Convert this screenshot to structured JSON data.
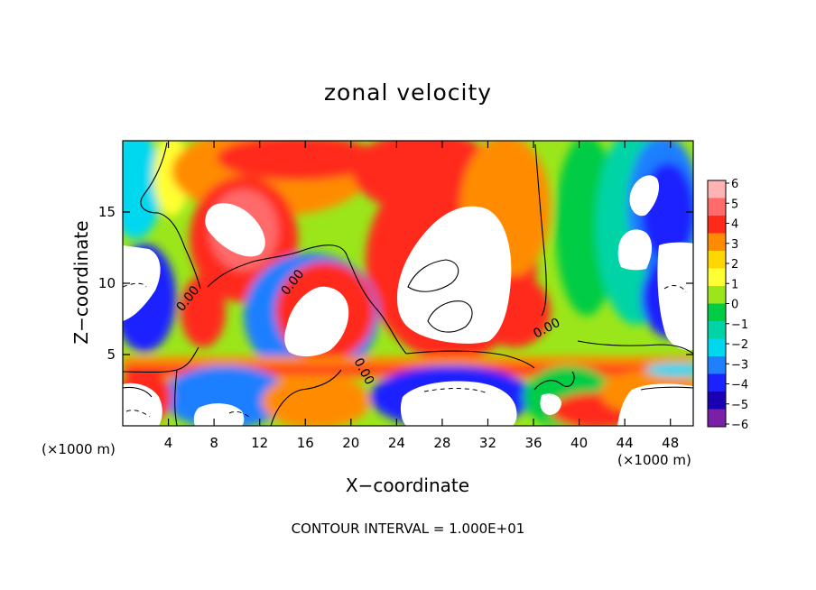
{
  "chart_data": {
    "type": "heatmap",
    "title": "zonal velocity",
    "xlabel": "X−coordinate",
    "ylabel": "Z−coordinate",
    "x_unit": "(×1000 m)",
    "y_unit": "(×1000 m)",
    "xlim": [
      0,
      50
    ],
    "ylim": [
      0,
      20
    ],
    "x_ticks": [
      4,
      8,
      12,
      16,
      20,
      24,
      28,
      32,
      36,
      40,
      44,
      48
    ],
    "y_ticks": [
      5,
      10,
      15
    ],
    "colorbar": {
      "ticks": [
        6,
        5,
        4,
        3,
        2,
        1,
        0,
        -1,
        -2,
        -3,
        -4,
        -5,
        -6
      ],
      "tick_labels": [
        "6",
        "5",
        "4",
        "3",
        "2",
        "1",
        "0",
        "−1",
        "−2",
        "−3",
        "−4",
        "−5",
        "−6"
      ],
      "colors": [
        "#ffb3b3",
        "#ff6a6a",
        "#ff2a1a",
        "#ff8c00",
        "#ffd700",
        "#ffff33",
        "#9be61a",
        "#00cc44",
        "#00d4a6",
        "#00d8f0",
        "#1e7fff",
        "#1a22ff",
        "#1a00b3",
        "#7a1fa8"
      ]
    },
    "contour_labels": [
      "0.00",
      "0.00",
      "0.00",
      "0.00"
    ],
    "annotation": "CONTOUR INTERVAL = 1.000E+01"
  },
  "colors": {
    "background": "#ffffff",
    "frame": "#000000"
  }
}
